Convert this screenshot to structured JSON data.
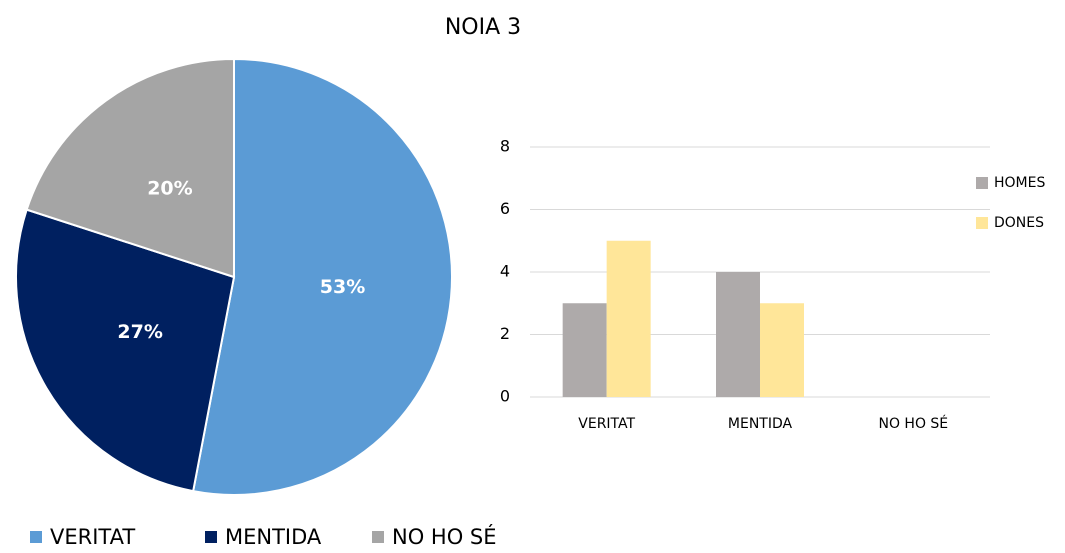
{
  "title": "NOIA 3",
  "chart_data": [
    {
      "type": "pie",
      "categories": [
        "VERITAT",
        "MENTIDA",
        "NO HO SÉ"
      ],
      "values": [
        53,
        27,
        20
      ],
      "value_labels": [
        "53%",
        "27%",
        "20%"
      ],
      "colors": [
        "#5b9bd5",
        "#002060",
        "#a5a5a5"
      ],
      "legend": "bottom"
    },
    {
      "type": "bar",
      "categories": [
        "VERITAT",
        "MENTIDA",
        "NO HO SÉ"
      ],
      "series": [
        {
          "name": "HOMES",
          "color": "#aeaaaa",
          "values": [
            3,
            4,
            0
          ]
        },
        {
          "name": "DONES",
          "color": "#ffe699",
          "values": [
            5,
            3,
            0
          ]
        }
      ],
      "ylim": [
        0,
        8
      ],
      "yticks": [
        0,
        2,
        4,
        6,
        8
      ],
      "grid": true,
      "legend": "right"
    }
  ]
}
